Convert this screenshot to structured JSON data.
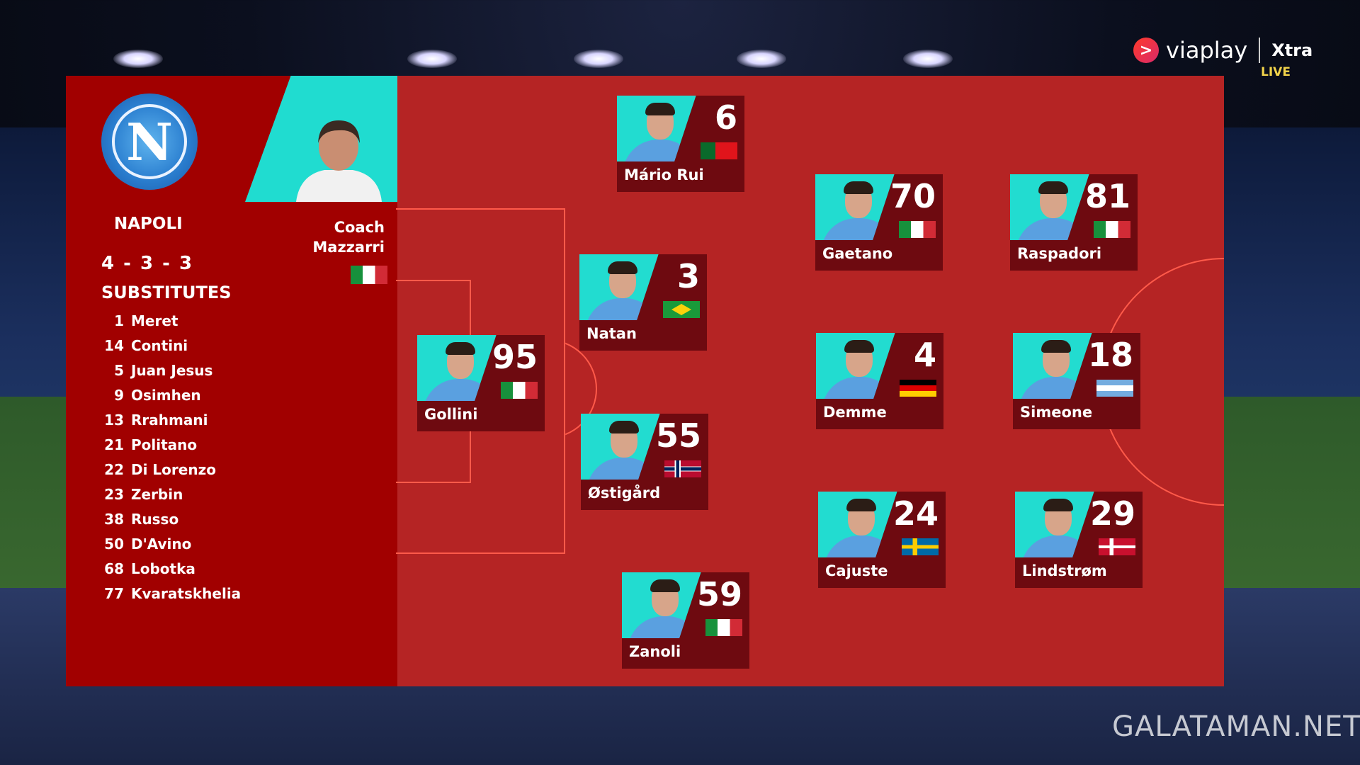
{
  "broadcaster": {
    "name": "viaplay",
    "channel": "Xtra",
    "status": "LIVE"
  },
  "watermark": "GALATAMAN.NET",
  "team": {
    "name": "NAPOLI",
    "crest_letter": "N",
    "formation": "4 - 3 - 3",
    "coach_label": "Coach",
    "coach_name": "Mazzarri",
    "coach_flag": "ITA",
    "substitutes_title": "SUBSTITUTES",
    "substitutes": [
      {
        "number": "1",
        "name": "Meret"
      },
      {
        "number": "14",
        "name": "Contini"
      },
      {
        "number": "5",
        "name": "Juan Jesus"
      },
      {
        "number": "9",
        "name": "Osimhen"
      },
      {
        "number": "13",
        "name": "Rrahmani"
      },
      {
        "number": "21",
        "name": "Politano"
      },
      {
        "number": "22",
        "name": "Di Lorenzo"
      },
      {
        "number": "23",
        "name": "Zerbin"
      },
      {
        "number": "38",
        "name": "Russo"
      },
      {
        "number": "50",
        "name": "D'Avino"
      },
      {
        "number": "68",
        "name": "Lobotka"
      },
      {
        "number": "77",
        "name": "Kvaratskhelia"
      }
    ]
  },
  "lineup": [
    {
      "number": "95",
      "name": "Gollini",
      "flag": "ITA"
    },
    {
      "number": "6",
      "name": "Mário Rui",
      "flag": "POR"
    },
    {
      "number": "3",
      "name": "Natan",
      "flag": "BRA"
    },
    {
      "number": "55",
      "name": "Østigård",
      "flag": "NOR"
    },
    {
      "number": "59",
      "name": "Zanoli",
      "flag": "ITA"
    },
    {
      "number": "70",
      "name": "Gaetano",
      "flag": "ITA"
    },
    {
      "number": "4",
      "name": "Demme",
      "flag": "GER"
    },
    {
      "number": "24",
      "name": "Cajuste",
      "flag": "SWE"
    },
    {
      "number": "81",
      "name": "Raspadori",
      "flag": "ITA"
    },
    {
      "number": "18",
      "name": "Simeone",
      "flag": "ARG"
    },
    {
      "number": "29",
      "name": "Lindstrøm",
      "flag": "DEN"
    }
  ],
  "colors": {
    "panel": "#b52424",
    "left_panel": "#a10000",
    "card": "#6e0a10",
    "photo_bg": "#22dcd0",
    "live": "#f2d34a"
  }
}
